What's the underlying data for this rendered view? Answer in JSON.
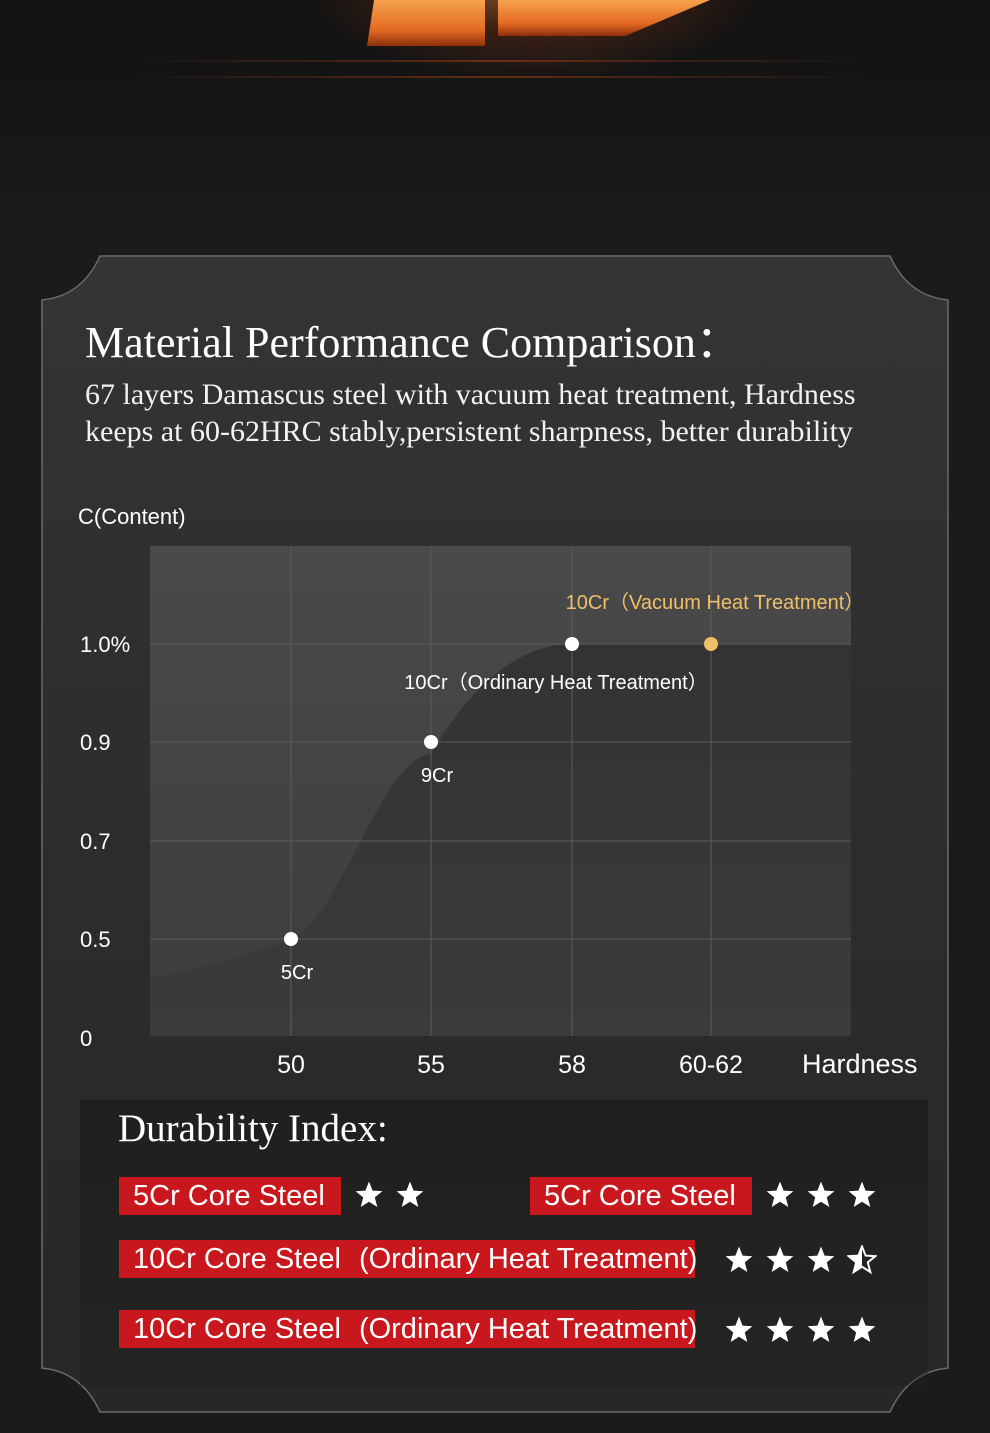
{
  "header": {
    "title": "Material Performance Comparison：",
    "subtitle": "67 layers Damascus steel with vacuum heat treatment, Hardness keeps at 60-62HRC stably,persistent sharpness, better durability"
  },
  "chart_data": {
    "type": "scatter",
    "ylabel": "C(Content)",
    "xlabel": "Hardness",
    "x_categories": [
      "50",
      "55",
      "58",
      "60-62"
    ],
    "y_ticks": [
      "0",
      "0.5",
      "0.7",
      "0.9",
      "1.0%"
    ],
    "grid": true,
    "points": [
      {
        "x": "50",
        "y": 0.5,
        "label": "5Cr",
        "color": "#ffffff"
      },
      {
        "x": "55",
        "y": 0.9,
        "label": "9Cr",
        "color": "#ffffff"
      },
      {
        "x": "58",
        "y": 1.0,
        "label": "10Cr（Ordinary Heat Treatment）",
        "color": "#ffffff"
      },
      {
        "x": "60-62",
        "y": 1.0,
        "label": "10Cr（Vacuum Heat Treatment）",
        "color": "#f0c069"
      }
    ]
  },
  "durability": {
    "title": "Durability Index:",
    "rows": [
      {
        "label": "5Cr Core Steel",
        "note": "",
        "stars": 2
      },
      {
        "label": "5Cr Core Steel",
        "note": "",
        "stars": 3
      },
      {
        "label": "10Cr Core Steel",
        "note": "(Ordinary Heat Treatment)",
        "stars": 3.5
      },
      {
        "label": "10Cr Core Steel",
        "note": "(Ordinary Heat Treatment)",
        "stars": 4
      }
    ]
  },
  "colors": {
    "accent_red": "#c8171d",
    "accent_gold": "#f0c069",
    "panel": "#2f2f2f"
  }
}
